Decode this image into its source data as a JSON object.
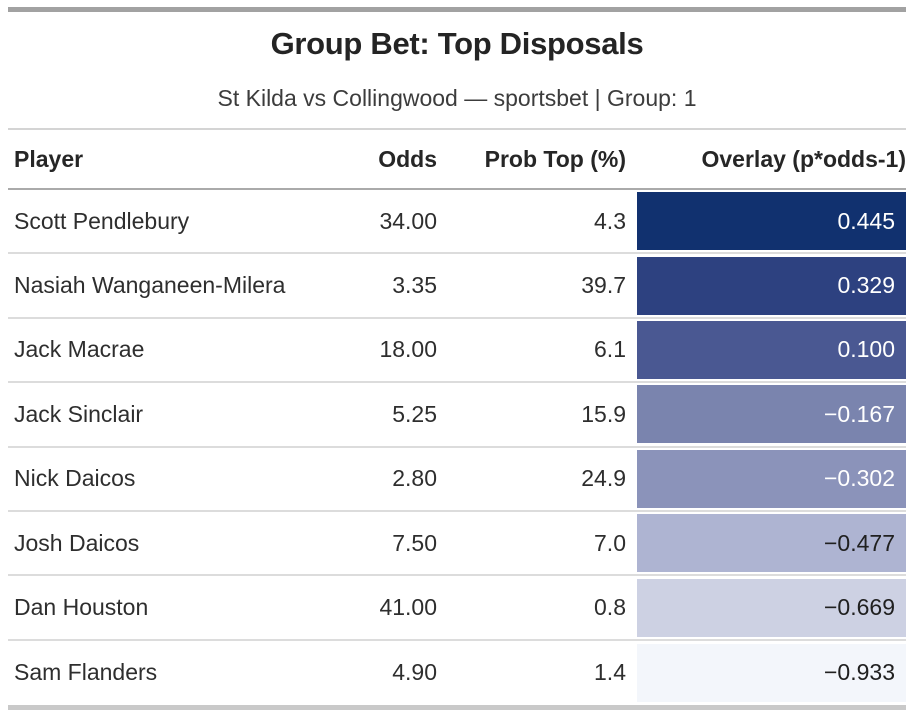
{
  "header": {
    "title": "Group Bet: Top Disposals",
    "subtitle": "St Kilda vs Collingwood — sportsbet | Group: 1"
  },
  "table": {
    "columns": [
      "Player",
      "Odds",
      "Prob Top (%)",
      "Overlay (p*odds-1)"
    ],
    "rows": [
      {
        "player": "Scott Pendlebury",
        "odds": "34.00",
        "prob": "4.3",
        "overlay": "0.445",
        "bg": "#11316f",
        "fg": "#ffffff"
      },
      {
        "player": "Nasiah Wanganeen-Milera",
        "odds": "3.35",
        "prob": "39.7",
        "overlay": "0.329",
        "bg": "#2d4180",
        "fg": "#ffffff"
      },
      {
        "player": "Jack Macrae",
        "odds": "18.00",
        "prob": "6.1",
        "overlay": "0.100",
        "bg": "#4a5892",
        "fg": "#ffffff"
      },
      {
        "player": "Jack Sinclair",
        "odds": "5.25",
        "prob": "15.9",
        "overlay": "−0.167",
        "bg": "#7a84ae",
        "fg": "#ffffff"
      },
      {
        "player": "Nick Daicos",
        "odds": "2.80",
        "prob": "24.9",
        "overlay": "−0.302",
        "bg": "#8b93ba",
        "fg": "#ffffff"
      },
      {
        "player": "Josh Daicos",
        "odds": "7.50",
        "prob": "7.0",
        "overlay": "−0.477",
        "bg": "#aeb4d2",
        "fg": "#202020"
      },
      {
        "player": "Dan Houston",
        "odds": "41.00",
        "prob": "0.8",
        "overlay": "−0.669",
        "bg": "#cdd1e3",
        "fg": "#202020"
      },
      {
        "player": "Sam Flanders",
        "odds": "4.90",
        "prob": "1.4",
        "overlay": "−0.933",
        "bg": "#f3f6fb",
        "fg": "#202020"
      }
    ]
  },
  "colors": {
    "top_bar": "#a2a2a2",
    "bottom_bar": "#c9c9c9",
    "subtitle_divider": "#d4d4d4",
    "header_underline": "#aaaaaa",
    "row_separator": "#dcdcdc"
  },
  "chart_data": {
    "type": "table",
    "title": "Group Bet: Top Disposals",
    "subtitle": "St Kilda vs Collingwood — sportsbet | Group: 1",
    "columns": [
      "Player",
      "Odds",
      "Prob Top (%)",
      "Overlay (p*odds-1)"
    ],
    "rows": [
      [
        "Scott Pendlebury",
        34.0,
        4.3,
        0.445
      ],
      [
        "Nasiah Wanganeen-Milera",
        3.35,
        39.7,
        0.329
      ],
      [
        "Jack Macrae",
        18.0,
        6.1,
        0.1
      ],
      [
        "Jack Sinclair",
        5.25,
        15.9,
        -0.167
      ],
      [
        "Nick Daicos",
        2.8,
        24.9,
        -0.302
      ],
      [
        "Josh Daicos",
        7.5,
        7.0,
        -0.477
      ],
      [
        "Dan Houston",
        41.0,
        0.8,
        -0.669
      ],
      [
        "Sam Flanders",
        4.9,
        1.4,
        -0.933
      ]
    ],
    "heat_column": "Overlay (p*odds-1)",
    "heat_scale_low_to_high": [
      "#f3f6fb",
      "#11316f"
    ],
    "layout": {
      "numeric_alignment": "right",
      "heat_text_switches_to_white_above": -0.4
    }
  }
}
